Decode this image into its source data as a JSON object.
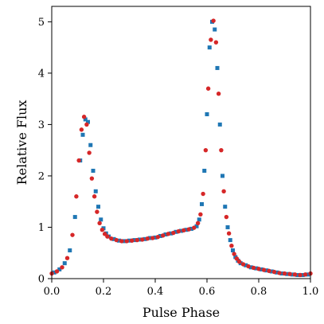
{
  "chart_data": {
    "type": "scatter",
    "xlabel": "Pulse Phase",
    "ylabel": "Relative Flux",
    "xlim": [
      0.0,
      1.0
    ],
    "ylim": [
      0.0,
      5.3
    ],
    "xticks": [
      0.0,
      0.2,
      0.4,
      0.6,
      0.8,
      1.0
    ],
    "xtick_labels": [
      "0.0",
      "0.2",
      "0.4",
      "0.6",
      "0.8",
      "1.0"
    ],
    "yticks": [
      0,
      1,
      2,
      3,
      4,
      5
    ],
    "ytick_labels": [
      "0",
      "1",
      "2",
      "3",
      "4",
      "5"
    ],
    "grid": false,
    "series": [
      {
        "marker": "square",
        "color": "#1f77b4",
        "x": [
          0.01,
          0.03,
          0.05,
          0.07,
          0.09,
          0.11,
          0.12,
          0.13,
          0.14,
          0.15,
          0.16,
          0.17,
          0.18,
          0.19,
          0.2,
          0.21,
          0.22,
          0.24,
          0.26,
          0.28,
          0.3,
          0.32,
          0.34,
          0.36,
          0.38,
          0.4,
          0.42,
          0.44,
          0.46,
          0.48,
          0.5,
          0.52,
          0.54,
          0.56,
          0.57,
          0.58,
          0.59,
          0.6,
          0.61,
          0.62,
          0.63,
          0.64,
          0.65,
          0.66,
          0.67,
          0.68,
          0.69,
          0.7,
          0.71,
          0.72,
          0.73,
          0.75,
          0.77,
          0.79,
          0.81,
          0.83,
          0.85,
          0.87,
          0.89,
          0.91,
          0.93,
          0.95,
          0.97,
          0.99
        ],
        "y": [
          0.12,
          0.18,
          0.3,
          0.55,
          1.2,
          2.3,
          2.8,
          3.1,
          3.05,
          2.6,
          2.1,
          1.7,
          1.4,
          1.15,
          0.98,
          0.88,
          0.82,
          0.77,
          0.74,
          0.73,
          0.74,
          0.75,
          0.76,
          0.77,
          0.79,
          0.8,
          0.83,
          0.86,
          0.88,
          0.91,
          0.93,
          0.95,
          0.97,
          1.02,
          1.15,
          1.45,
          2.1,
          3.2,
          4.5,
          5.0,
          4.85,
          4.1,
          3.0,
          2.0,
          1.4,
          1.0,
          0.75,
          0.55,
          0.42,
          0.35,
          0.3,
          0.26,
          0.22,
          0.2,
          0.18,
          0.16,
          0.14,
          0.12,
          0.1,
          0.09,
          0.08,
          0.07,
          0.07,
          0.08
        ]
      },
      {
        "marker": "circle",
        "color": "#d62728",
        "x": [
          0.0,
          0.02,
          0.04,
          0.06,
          0.08,
          0.095,
          0.105,
          0.115,
          0.125,
          0.135,
          0.145,
          0.155,
          0.165,
          0.175,
          0.185,
          0.195,
          0.205,
          0.215,
          0.23,
          0.25,
          0.27,
          0.29,
          0.31,
          0.33,
          0.35,
          0.37,
          0.39,
          0.41,
          0.43,
          0.45,
          0.47,
          0.49,
          0.51,
          0.53,
          0.55,
          0.565,
          0.575,
          0.585,
          0.595,
          0.605,
          0.615,
          0.625,
          0.635,
          0.645,
          0.655,
          0.665,
          0.675,
          0.685,
          0.695,
          0.705,
          0.715,
          0.725,
          0.74,
          0.76,
          0.78,
          0.8,
          0.82,
          0.84,
          0.86,
          0.88,
          0.9,
          0.92,
          0.94,
          0.96,
          0.98,
          1.0
        ],
        "y": [
          0.1,
          0.14,
          0.22,
          0.4,
          0.85,
          1.6,
          2.3,
          2.9,
          3.15,
          3.0,
          2.45,
          1.95,
          1.6,
          1.3,
          1.08,
          0.95,
          0.87,
          0.82,
          0.78,
          0.75,
          0.73,
          0.73,
          0.74,
          0.75,
          0.76,
          0.78,
          0.79,
          0.81,
          0.84,
          0.87,
          0.89,
          0.92,
          0.94,
          0.96,
          0.99,
          1.08,
          1.25,
          1.65,
          2.5,
          3.7,
          4.65,
          5.02,
          4.6,
          3.6,
          2.5,
          1.7,
          1.2,
          0.88,
          0.64,
          0.48,
          0.39,
          0.33,
          0.28,
          0.24,
          0.21,
          0.19,
          0.17,
          0.15,
          0.13,
          0.11,
          0.1,
          0.09,
          0.08,
          0.07,
          0.08,
          0.1
        ]
      }
    ]
  }
}
